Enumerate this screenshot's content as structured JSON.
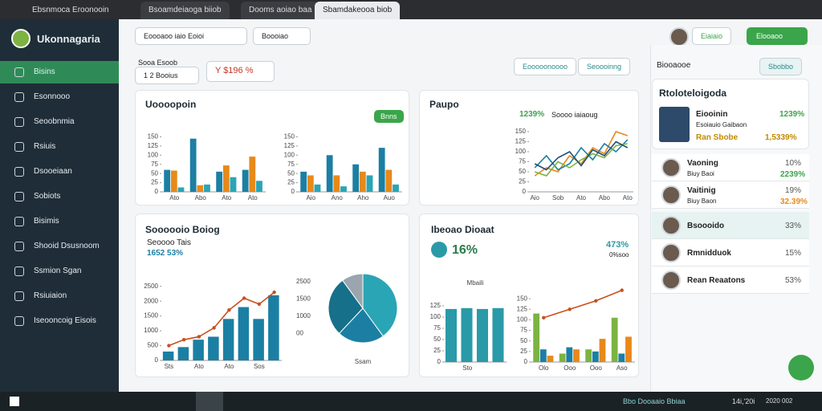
{
  "tabs": [
    "Ebsnmoca Eroonooin",
    "Bsoamdeiaoga biiob",
    "Dooms aoiao baa",
    "Sbamdakeooa biob"
  ],
  "sidebar": {
    "title": "Ukonnagaria",
    "items": [
      "Bisins",
      "Esonnooo",
      "Seoobnmia",
      "Rsiuis",
      "Dsooeiaan",
      "Sobiots",
      "Bisimis",
      "Shooid Dsusnoom",
      "Ssmion Sgan",
      "Rsiuiaion",
      "Iseooncoig Eisois"
    ]
  },
  "header": {
    "dropdown": "Eoooaoo iaio Eoioi",
    "filter": "Boooiao",
    "button1": "Eiaiaio",
    "button2": "Elooaoo"
  },
  "stats": {
    "label": "Sooa Esoob",
    "stat1": "1  2 Booius",
    "stat2": "Y  $196 %",
    "action1": "Eooooonoooo",
    "action2": "Seoooinng"
  },
  "cards": {
    "c1_title": "Uoooopoin",
    "c1_badge": "Bnns",
    "c2_title": "Paupo",
    "c2_value": "1239%",
    "c2_sub": "Soooo iaiaoug",
    "c3_title": "Soooooio Boiog",
    "c3_sub": "Seoooo Tais",
    "c3_value": "1652  53%",
    "c4_title": "Ibeoao Dioaat",
    "c4_value": "16%",
    "c4_right": "473%",
    "c4_right_sub": "0%soo"
  },
  "panel": {
    "title": "Biooaooe",
    "button": "Sbobbo",
    "card_title": "Rtoloteloigoda",
    "profile_name": "Eiooinin",
    "profile_sub": "Esoiauio Gaibaon",
    "profile_pct": "1239%",
    "profile_tag": "Ran Sbobe",
    "profile_total": "1,5339%",
    "people": [
      {
        "name": "Vaoning",
        "sub": "Biuy Baoi",
        "pct": "10%",
        "pct2": "2239%"
      },
      {
        "name": "Vaitinig",
        "sub": "Biuy Baon",
        "pct": "19%",
        "pct2": "32.39%"
      },
      {
        "name": "Bsoooido",
        "pct": "33%"
      },
      {
        "name": "Rmnidduok",
        "pct": "15%"
      },
      {
        "name": "Rean Reaatons",
        "pct": "53%"
      }
    ]
  },
  "taskbar": {
    "status": "Bbo Dooaaio Bbiaa",
    "icons": "14i,'20i",
    "date": "2020 002"
  },
  "chart_data": [
    {
      "type": "bar",
      "categories": [
        "Ato",
        "Abo",
        "Ato",
        "Ato"
      ],
      "ylim": [
        0,
        175
      ],
      "yticks": [
        0,
        25,
        50,
        75,
        100,
        125,
        150
      ],
      "series": [
        {
          "name": "A",
          "color": "#1b7fa3",
          "values": [
            60,
            145,
            55,
            60
          ]
        },
        {
          "name": "B",
          "color": "#e8891a",
          "values": [
            58,
            18,
            72,
            96
          ]
        },
        {
          "name": "C",
          "color": "#2aa5b5",
          "values": [
            12,
            20,
            40,
            30
          ]
        }
      ]
    },
    {
      "type": "bar",
      "categories": [
        "Aio",
        "Ano",
        "Aho",
        "Auo"
      ],
      "ylim": [
        0,
        175
      ],
      "yticks": [
        0,
        25,
        50,
        75,
        100,
        125,
        150
      ],
      "series": [
        {
          "name": "A",
          "color": "#1b7fa3",
          "values": [
            55,
            100,
            75,
            120
          ]
        },
        {
          "name": "B",
          "color": "#e8891a",
          "values": [
            45,
            45,
            55,
            60
          ]
        },
        {
          "name": "C",
          "color": "#2aa5b5",
          "values": [
            20,
            15,
            45,
            20
          ]
        }
      ]
    },
    {
      "type": "line",
      "categories": [
        "Aio",
        null,
        "Sob",
        null,
        "Ato",
        null,
        "Abo",
        null,
        "Ato"
      ],
      "ylim": [
        0,
        160
      ],
      "yticks": [
        0,
        25,
        50,
        75,
        100,
        125,
        150
      ],
      "series": [
        {
          "name": "A",
          "color": "#e8891a",
          "values": [
            40,
            60,
            50,
            90,
            70,
            110,
            95,
            150,
            140
          ]
        },
        {
          "name": "B",
          "color": "#1b7fa3",
          "values": [
            60,
            90,
            55,
            70,
            110,
            80,
            120,
            100,
            130
          ]
        },
        {
          "name": "C",
          "color": "#7cb342",
          "values": [
            50,
            40,
            75,
            60,
            80,
            95,
            85,
            115,
            120
          ]
        },
        {
          "name": "D",
          "color": "#1f4e79",
          "values": [
            70,
            55,
            85,
            100,
            65,
            105,
            90,
            125,
            110
          ]
        }
      ]
    },
    {
      "type": "bar",
      "categories": [
        "Sts",
        null,
        "Ato",
        null,
        "Ato",
        null,
        "Sos",
        null
      ],
      "ylim": [
        0,
        2600
      ],
      "yticks": [
        0,
        500,
        1000,
        1500,
        2000,
        2500
      ],
      "series": [
        {
          "name": "A",
          "color": "#1b7fa3",
          "values": [
            300,
            450,
            700,
            800,
            1400,
            1800,
            1400,
            2200
          ]
        },
        {
          "name": "B",
          "kind": "line",
          "color": "#c8501e",
          "values": [
            500,
            700,
            800,
            1100,
            1700,
            2100,
            1900,
            2300
          ]
        }
      ]
    },
    {
      "type": "pie",
      "values": [
        40,
        22,
        28,
        10
      ],
      "colors": [
        "#2aa5b5",
        "#1b7fa3",
        "#167089",
        "#9aa5ad"
      ],
      "side_labels": [
        "2500",
        "1500",
        "1000",
        "00"
      ],
      "label": "Ssam"
    },
    {
      "type": "bar",
      "title": "Mbaili",
      "categories": [
        null,
        "Sto",
        null,
        null
      ],
      "ylim": [
        0,
        150
      ],
      "yticks": [
        0,
        25,
        50,
        75,
        100,
        125
      ],
      "series": [
        {
          "name": "A",
          "color": "#2a9aa8",
          "values": [
            118,
            120,
            118,
            120
          ]
        }
      ]
    },
    {
      "type": "bar",
      "categories": [
        "Olo",
        "Ooo",
        "Ooo",
        "Aso"
      ],
      "ylim": [
        0,
        175
      ],
      "yticks": [
        0,
        25,
        50,
        75,
        100,
        125,
        150
      ],
      "series": [
        {
          "name": "A",
          "color": "#7cb342",
          "values": [
            115,
            20,
            30,
            105
          ]
        },
        {
          "name": "B",
          "color": "#1b7fa3",
          "values": [
            30,
            35,
            25,
            20
          ]
        },
        {
          "name": "C",
          "color": "#e8891a",
          "values": [
            15,
            30,
            55,
            60
          ]
        },
        {
          "name": "D",
          "kind": "line",
          "color": "#c8501e",
          "values": [
            105,
            125,
            145,
            170
          ]
        }
      ]
    }
  ]
}
